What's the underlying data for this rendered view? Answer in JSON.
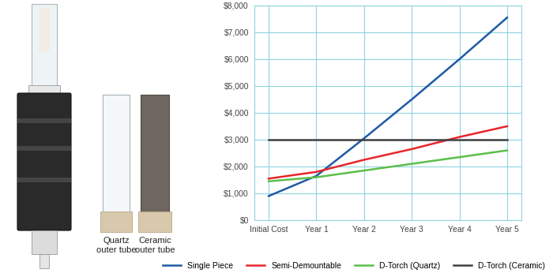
{
  "chart_data": {
    "type": "line",
    "categories": [
      "Initial Cost",
      "Year 1",
      "Year 2",
      "Year 3",
      "Year 4",
      "Year 5"
    ],
    "series": [
      {
        "name": "Single Piece",
        "color": "#1f5aa6",
        "values": [
          900,
          1650,
          3050,
          4500,
          6000,
          7550
        ]
      },
      {
        "name": "Semi-Demountable",
        "color": "#e8262a",
        "values": [
          1550,
          1800,
          2250,
          2650,
          3100,
          3500
        ]
      },
      {
        "name": "D-Torch (Quartz)",
        "color": "#5cbf4a",
        "values": [
          1450,
          1600,
          1850,
          2100,
          2350,
          2600
        ]
      },
      {
        "name": "D-Torch (Ceramic)",
        "color": "#404040",
        "values": [
          3000,
          3000,
          3000,
          3000,
          3000,
          3000
        ]
      }
    ],
    "ylim": [
      0,
      8000
    ],
    "yticks": [
      {
        "value": 0,
        "label": "$0"
      },
      {
        "value": 1000,
        "label": "$1,000"
      },
      {
        "value": 2000,
        "label": "$2,000"
      },
      {
        "value": 3000,
        "label": "$3,000"
      },
      {
        "value": 4000,
        "label": "$4,000"
      },
      {
        "value": 5000,
        "label": "$5,000"
      },
      {
        "value": 6000,
        "label": "$6,000"
      },
      {
        "value": 7000,
        "label": "$7,000"
      },
      {
        "value": 8000,
        "label": "$8,000"
      }
    ],
    "grid": true,
    "legend": "lower center",
    "annotations": [
      "Quartz\nouter tube",
      "Ceramic\nouter tube"
    ]
  }
}
